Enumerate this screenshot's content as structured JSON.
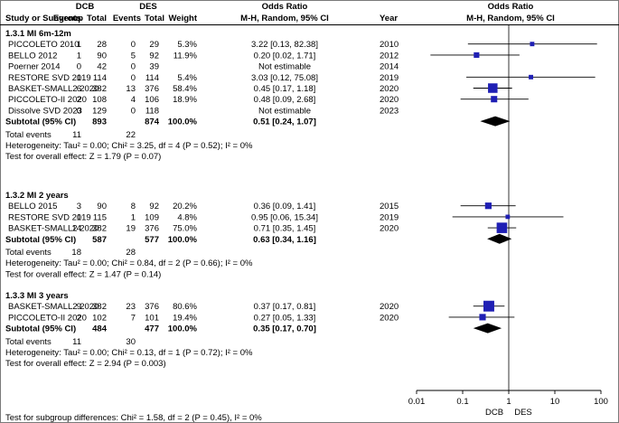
{
  "header": {
    "dcb": "DCB",
    "des": "DES",
    "odds_ratio": "Odds Ratio",
    "odds_ratio_right": "Odds Ratio",
    "study": "Study or Subgroup",
    "events1": "Events",
    "total1": "Total",
    "events2": "Events",
    "total2": "Total",
    "weight": "Weight",
    "method": "M-H, Random, 95% CI",
    "year": "Year",
    "method_right": "M-H, Random, 95% CI"
  },
  "chart_data": {
    "type": "forest",
    "axis": {
      "scale": "log",
      "min": 0.01,
      "max": 100,
      "ticks": [
        "0.01",
        "0.1",
        "1",
        "10",
        "100"
      ],
      "favours_left": "DCB",
      "favours_right": "DES"
    },
    "subgroups": [
      {
        "title": "1.3.1 MI 6m-12m",
        "studies": [
          {
            "name": "PICCOLETO 2010",
            "e1": "1",
            "t1": "28",
            "e2": "0",
            "t2": "29",
            "weight": "5.3%",
            "ci_text": "3.22 [0.13, 82.38]",
            "year": "2010",
            "or": 3.22,
            "lo": 0.13,
            "hi": 82.38
          },
          {
            "name": "BELLO 2012",
            "e1": "1",
            "t1": "90",
            "e2": "5",
            "t2": "92",
            "weight": "11.9%",
            "ci_text": "0.20 [0.02, 1.71]",
            "year": "2012",
            "or": 0.2,
            "lo": 0.02,
            "hi": 1.71
          },
          {
            "name": "Poerner 2014",
            "e1": "0",
            "t1": "42",
            "e2": "0",
            "t2": "39",
            "weight": "",
            "ci_text": "Not estimable",
            "year": "2014",
            "or": null,
            "lo": null,
            "hi": null
          },
          {
            "name": "RESTORE SVD 2019",
            "e1": "1",
            "t1": "114",
            "e2": "0",
            "t2": "114",
            "weight": "5.4%",
            "ci_text": "3.03 [0.12, 75.08]",
            "year": "2019",
            "or": 3.03,
            "lo": 0.12,
            "hi": 75.08
          },
          {
            "name": "BASKET-SMALL2 2020",
            "e1": "6",
            "t1": "382",
            "e2": "13",
            "t2": "376",
            "weight": "58.4%",
            "ci_text": "0.45 [0.17, 1.18]",
            "year": "2020",
            "or": 0.45,
            "lo": 0.17,
            "hi": 1.18
          },
          {
            "name": "PICCOLETO-II 2020",
            "e1": "2",
            "t1": "108",
            "e2": "4",
            "t2": "106",
            "weight": "18.9%",
            "ci_text": "0.48 [0.09, 2.68]",
            "year": "2020",
            "or": 0.48,
            "lo": 0.09,
            "hi": 2.68
          },
          {
            "name": "Dissolve SVD 2023",
            "e1": "0",
            "t1": "129",
            "e2": "0",
            "t2": "118",
            "weight": "",
            "ci_text": "Not estimable",
            "year": "2023",
            "or": null,
            "lo": null,
            "hi": null
          }
        ],
        "subtotal": {
          "label": "Subtotal (95% CI)",
          "t1": "893",
          "t2": "874",
          "weight": "100.0%",
          "ci_text": "0.51 [0.24, 1.07]",
          "or": 0.51,
          "lo": 0.24,
          "hi": 1.07
        },
        "total_events": {
          "label": "Total events",
          "e1": "11",
          "e2": "22"
        },
        "heterogeneity": "Heterogeneity: Tau² = 0.00; Chi² = 3.25, df = 4 (P = 0.52); I² = 0%",
        "overall": "Test for overall effect: Z = 1.79 (P = 0.07)"
      },
      {
        "title": "1.3.2 MI 2 years",
        "studies": [
          {
            "name": "BELLO 2015",
            "e1": "3",
            "t1": "90",
            "e2": "8",
            "t2": "92",
            "weight": "20.2%",
            "ci_text": "0.36 [0.09, 1.41]",
            "year": "2015",
            "or": 0.36,
            "lo": 0.09,
            "hi": 1.41
          },
          {
            "name": "RESTORE SVD 2019",
            "e1": "1",
            "t1": "115",
            "e2": "1",
            "t2": "109",
            "weight": "4.8%",
            "ci_text": "0.95 [0.06, 15.34]",
            "year": "2019",
            "or": 0.95,
            "lo": 0.06,
            "hi": 15.34
          },
          {
            "name": "BASKET-SMALL2 2020",
            "e1": "14",
            "t1": "382",
            "e2": "19",
            "t2": "376",
            "weight": "75.0%",
            "ci_text": "0.71 [0.35, 1.45]",
            "year": "2020",
            "or": 0.71,
            "lo": 0.35,
            "hi": 1.45
          }
        ],
        "subtotal": {
          "label": "Subtotal (95% CI)",
          "t1": "587",
          "t2": "577",
          "weight": "100.0%",
          "ci_text": "0.63 [0.34, 1.16]",
          "or": 0.63,
          "lo": 0.34,
          "hi": 1.16
        },
        "total_events": {
          "label": "Total events",
          "e1": "18",
          "e2": "28"
        },
        "heterogeneity": "Heterogeneity: Tau² = 0.00; Chi² = 0.84, df = 2 (P = 0.66); I² = 0%",
        "overall": "Test for overall effect: Z = 1.47 (P = 0.14)"
      },
      {
        "title": "1.3.3 MI 3 years",
        "studies": [
          {
            "name": "BASKET-SMALL2 2020",
            "e1": "9",
            "t1": "382",
            "e2": "23",
            "t2": "376",
            "weight": "80.6%",
            "ci_text": "0.37 [0.17, 0.81]",
            "year": "2020",
            "or": 0.37,
            "lo": 0.17,
            "hi": 0.81
          },
          {
            "name": "PICCOLETO-II 2020",
            "e1": "2",
            "t1": "102",
            "e2": "7",
            "t2": "101",
            "weight": "19.4%",
            "ci_text": "0.27 [0.05, 1.33]",
            "year": "2020",
            "or": 0.27,
            "lo": 0.05,
            "hi": 1.33
          }
        ],
        "subtotal": {
          "label": "Subtotal (95% CI)",
          "t1": "484",
          "t2": "477",
          "weight": "100.0%",
          "ci_text": "0.35 [0.17, 0.70]",
          "or": 0.35,
          "lo": 0.17,
          "hi": 0.7
        },
        "total_events": {
          "label": "Total events",
          "e1": "11",
          "e2": "30"
        },
        "heterogeneity": "Heterogeneity: Tau² = 0.00; Chi² = 0.13, df = 1 (P = 0.72); I² = 0%",
        "overall": "Test for overall effect: Z = 2.94 (P = 0.003)"
      }
    ],
    "subgroup_test": "Test for subgroup differences: Chi² = 1.58, df = 2 (P = 0.45), I² = 0%"
  },
  "colors": {
    "marker": "#1f1fb4",
    "line": "#000000",
    "diamond": "#000000"
  }
}
